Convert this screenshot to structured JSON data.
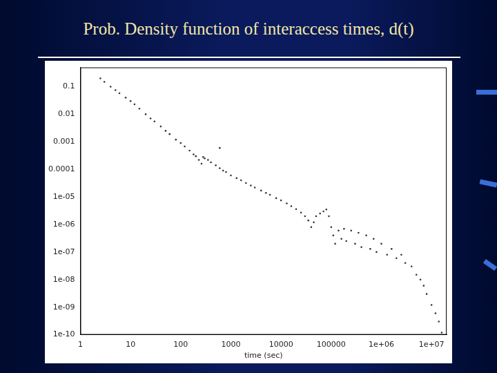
{
  "chart_data": {
    "type": "scatter",
    "title": "Prob. Density function of interaccess times, d(t)",
    "x_label": "time (sec)",
    "log": true,
    "grid": false,
    "color": "#333333",
    "marker": "dot",
    "xlim": [
      1,
      20000000
    ],
    "ylim": [
      1e-10,
      0.5
    ],
    "xticks": [
      1,
      10,
      100,
      1000,
      10000,
      100000,
      {
        "value": 1000000,
        "label": "1e+06"
      },
      {
        "value": 10000000,
        "label": "1e+07"
      }
    ],
    "yticks": [
      0.1,
      0.01,
      0.001,
      0.0001,
      {
        "value": 1e-05,
        "label": "1e-05"
      },
      {
        "value": 1e-06,
        "label": "1e-06"
      },
      {
        "value": 1e-07,
        "label": "1e-07"
      },
      {
        "value": 1e-08,
        "label": "1e-08"
      },
      {
        "value": 1e-09,
        "label": "1e-09"
      },
      {
        "value": 1e-10,
        "label": "1e-10"
      }
    ],
    "x": [
      2.5,
      3,
      4,
      5,
      6,
      8,
      10,
      12,
      15,
      20,
      25,
      30,
      40,
      50,
      60,
      80,
      100,
      120,
      150,
      180,
      200,
      230,
      260,
      280,
      300,
      350,
      400,
      500,
      600,
      700,
      800,
      1000,
      1300,
      1600,
      2000,
      2500,
      3000,
      4000,
      5000,
      6000,
      8000,
      10000,
      13000,
      16000,
      20000,
      25000,
      30000,
      35000,
      40000,
      45000,
      50000,
      60000,
      70000,
      80000,
      90000,
      100000,
      110000,
      120000,
      140000,
      160000,
      180000,
      200000,
      250000,
      300000,
      350000,
      400000,
      500000,
      600000,
      700000,
      800000,
      1000000,
      1300000,
      1600000,
      2000000,
      2500000,
      3000000,
      4000000,
      5000000,
      6000000,
      7000000,
      8000000,
      10000000,
      12000000,
      14000000,
      16000000,
      600
    ],
    "values": [
      0.2,
      0.15,
      0.1,
      0.075,
      0.058,
      0.04,
      0.03,
      0.023,
      0.016,
      0.01,
      0.007,
      0.0055,
      0.0036,
      0.0025,
      0.0019,
      0.0012,
      0.0009,
      0.00068,
      0.00048,
      0.00035,
      0.0003,
      0.00022,
      0.00016,
      0.00028,
      0.00025,
      0.00022,
      0.00018,
      0.00014,
      0.00011,
      9e-05,
      8e-05,
      6e-05,
      4.8e-05,
      4e-05,
      3.2e-05,
      2.6e-05,
      2.2e-05,
      1.7e-05,
      1.4e-05,
      1.2e-05,
      9e-06,
      7.5e-06,
      5.8e-06,
      4.6e-06,
      3.6e-06,
      2.7e-06,
      2e-06,
      1.4e-06,
      8e-07,
      1.2e-06,
      2e-06,
      2.5e-06,
      3e-06,
      3.5e-06,
      2e-06,
      8e-07,
      4e-07,
      2e-07,
      6e-07,
      3e-07,
      7e-07,
      2.5e-07,
      6e-07,
      2e-07,
      5e-07,
      1.5e-07,
      4e-07,
      1.3e-07,
      3e-07,
      1e-07,
      2e-07,
      8e-08,
      1.3e-07,
      6e-08,
      8e-08,
      4e-08,
      3e-08,
      1.5e-08,
      1e-08,
      6e-09,
      3e-09,
      1.2e-09,
      6e-10,
      3e-10,
      1.2e-10,
      0.0006
    ]
  }
}
